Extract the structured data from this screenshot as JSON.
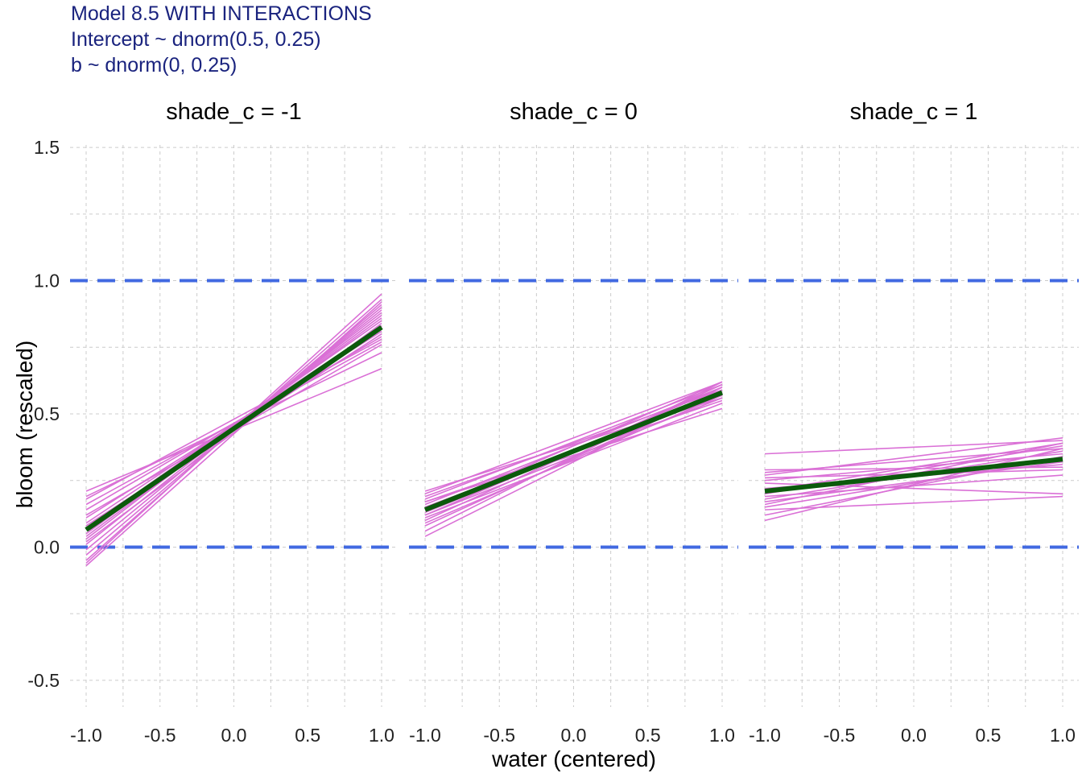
{
  "chart_data": {
    "type": "line",
    "title_lines": [
      "Model 8.5 WITH INTERACTIONS",
      "Intercept ~ dnorm(0.5, 0.25)",
      "b ~ dnorm(0, 0.25)"
    ],
    "xlabel": "water (centered)",
    "ylabel": "bloom (rescaled)",
    "xlim": [
      -1.0,
      1.0
    ],
    "ylim": [
      -0.6,
      1.6
    ],
    "x_ticks": [
      -1.0,
      -0.5,
      0.0,
      0.5,
      1.0
    ],
    "x_tick_labels": [
      "-1.0",
      "-0.5",
      "0.0",
      "0.5",
      "1.0"
    ],
    "y_ticks": [
      -0.5,
      0.0,
      0.5,
      1.0,
      1.5
    ],
    "y_tick_labels": [
      "-0.5",
      "0.0",
      "0.5",
      "1.0",
      "1.5"
    ],
    "grid": true,
    "reference_lines": [
      0.0,
      1.0
    ],
    "colors": {
      "title": "#1a237e",
      "prior_lines": "#da70d6",
      "mean_line": "#0b5a0b",
      "reference_lines": "#4169e1",
      "grid": "#cccccc"
    },
    "panels": [
      {
        "label": "shade_c = -1",
        "mean_line": [
          {
            "x": -1.0,
            "y": 0.065
          },
          {
            "x": 1.0,
            "y": 0.825
          }
        ],
        "prior_lines": [
          [
            0.21,
            0.67
          ],
          [
            0.19,
            0.73
          ],
          [
            0.16,
            0.77
          ],
          [
            0.14,
            0.79
          ],
          [
            0.11,
            0.81
          ],
          [
            0.09,
            0.83
          ],
          [
            0.07,
            0.85
          ],
          [
            0.05,
            0.86
          ],
          [
            0.03,
            0.88
          ],
          [
            0.01,
            0.89
          ],
          [
            -0.01,
            0.9
          ],
          [
            -0.03,
            0.91
          ],
          [
            -0.05,
            0.93
          ],
          [
            -0.06,
            0.95
          ],
          [
            0.12,
            0.76
          ],
          [
            0.04,
            0.87
          ],
          [
            0.02,
            0.84
          ],
          [
            -0.07,
            0.92
          ],
          [
            0.18,
            0.78
          ],
          [
            0.08,
            0.8
          ]
        ]
      },
      {
        "label": "shade_c = 0",
        "mean_line": [
          {
            "x": -1.0,
            "y": 0.14
          },
          {
            "x": 1.0,
            "y": 0.58
          }
        ],
        "prior_lines": [
          [
            0.21,
            0.56
          ],
          [
            0.2,
            0.62
          ],
          [
            0.19,
            0.59
          ],
          [
            0.18,
            0.61
          ],
          [
            0.17,
            0.55
          ],
          [
            0.16,
            0.6
          ],
          [
            0.15,
            0.57
          ],
          [
            0.14,
            0.62
          ],
          [
            0.13,
            0.58
          ],
          [
            0.12,
            0.6
          ],
          [
            0.11,
            0.54
          ],
          [
            0.1,
            0.61
          ],
          [
            0.09,
            0.57
          ],
          [
            0.08,
            0.59
          ],
          [
            0.06,
            0.62
          ],
          [
            0.04,
            0.6
          ],
          [
            0.17,
            0.52
          ],
          [
            0.12,
            0.56
          ]
        ]
      },
      {
        "label": "shade_c = 1",
        "mean_line": [
          {
            "x": -1.0,
            "y": 0.21
          },
          {
            "x": 1.0,
            "y": 0.33
          }
        ],
        "prior_lines": [
          [
            0.35,
            0.4
          ],
          [
            0.29,
            0.3
          ],
          [
            0.28,
            0.37
          ],
          [
            0.27,
            0.41
          ],
          [
            0.25,
            0.35
          ],
          [
            0.24,
            0.2
          ],
          [
            0.22,
            0.31
          ],
          [
            0.2,
            0.38
          ],
          [
            0.19,
            0.27
          ],
          [
            0.18,
            0.36
          ],
          [
            0.16,
            0.39
          ],
          [
            0.15,
            0.33
          ],
          [
            0.14,
            0.19
          ],
          [
            0.12,
            0.34
          ],
          [
            0.1,
            0.37
          ],
          [
            0.26,
            0.29
          ],
          [
            0.21,
            0.39
          ],
          [
            0.17,
            0.32
          ]
        ]
      }
    ]
  }
}
